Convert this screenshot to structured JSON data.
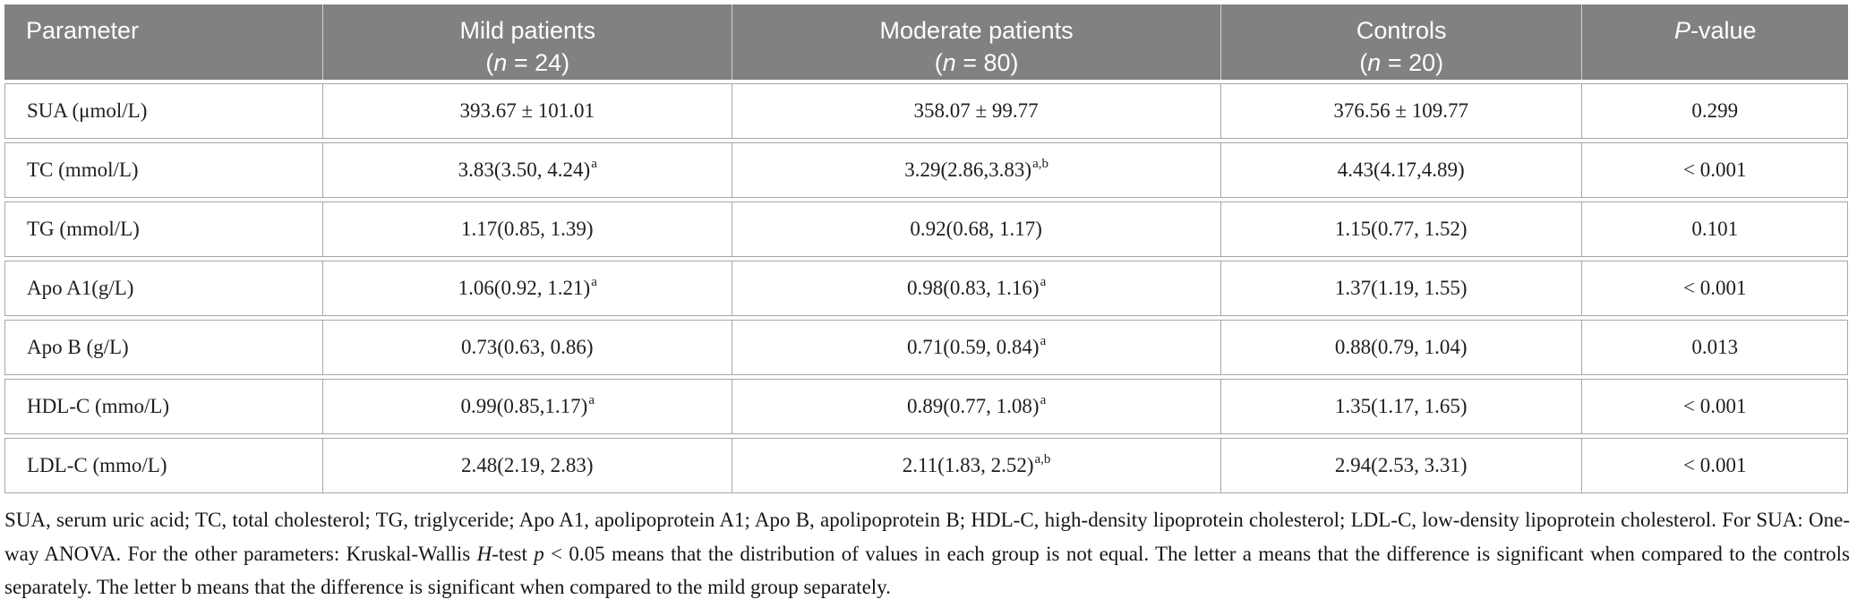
{
  "colors": {
    "header_bg": "#818181",
    "header_text": "#ffffff",
    "border": "#a6a6a6",
    "body_text": "#1f1f1f"
  },
  "table": {
    "header": {
      "parameter": "Parameter",
      "mild": {
        "title": "Mild patients",
        "paren_open": "(",
        "n_italic": "n",
        "paren_rest": " = 24)"
      },
      "moderate": {
        "title": "Moderate patients",
        "paren_open": "(",
        "n_italic": "n",
        "paren_rest": " = 80)"
      },
      "controls": {
        "title": "Controls",
        "paren_open": "(",
        "n_italic": "n",
        "paren_rest": " = 20)"
      },
      "pvalue": {
        "p_italic": "P",
        "rest": "-value"
      }
    },
    "rows": [
      {
        "param": "SUA (μmol/L)",
        "mild": {
          "text": "393.67 ± 101.01"
        },
        "moderate": {
          "text": "358.07 ± 99.77"
        },
        "controls": {
          "text": "376.56 ± 109.77"
        },
        "p": "0.299"
      },
      {
        "param": "TC (mmol/L)",
        "mild": {
          "text": "3.83(3.50, 4.24)",
          "sup": "a"
        },
        "moderate": {
          "text": "3.29(2.86,3.83)",
          "sup": "a,b"
        },
        "controls": {
          "text": "4.43(4.17,4.89)"
        },
        "p": "< 0.001"
      },
      {
        "param": "TG (mmol/L)",
        "mild": {
          "text": "1.17(0.85, 1.39)"
        },
        "moderate": {
          "text": "0.92(0.68, 1.17)"
        },
        "controls": {
          "text": "1.15(0.77, 1.52)"
        },
        "p": "0.101"
      },
      {
        "param": "Apo A1(g/L)",
        "mild": {
          "text": "1.06(0.92, 1.21)",
          "sup": "a"
        },
        "moderate": {
          "text": "0.98(0.83, 1.16)",
          "sup": "a"
        },
        "controls": {
          "text": "1.37(1.19, 1.55)"
        },
        "p": "< 0.001"
      },
      {
        "param": "Apo B (g/L)",
        "mild": {
          "text": "0.73(0.63, 0.86)"
        },
        "moderate": {
          "text": "0.71(0.59, 0.84)",
          "sup": "a"
        },
        "controls": {
          "text": "0.88(0.79, 1.04)"
        },
        "p": "0.013"
      },
      {
        "param": "HDL-C (mmo/L)",
        "mild": {
          "text": "0.99(0.85,1.17)",
          "sup": "a"
        },
        "moderate": {
          "text": "0.89(0.77, 1.08)",
          "sup": "a"
        },
        "controls": {
          "text": "1.35(1.17, 1.65)"
        },
        "p": "< 0.001"
      },
      {
        "param": "LDL-C (mmo/L)",
        "mild": {
          "text": "2.48(2.19, 2.83)"
        },
        "moderate": {
          "text": "2.11(1.83, 2.52)",
          "sup": "a,b"
        },
        "controls": {
          "text": "2.94(2.53, 3.31)"
        },
        "p": "< 0.001"
      }
    ]
  },
  "footnote": {
    "part1": "SUA, serum uric acid; TC, total cholesterol; TG, triglyceride; Apo A1, apolipoprotein A1; Apo B, apolipoprotein B; HDL-C, high-density lipoprotein cholesterol; LDL-C, low-density lipoprotein cholesterol. For SUA: One-way ANOVA. For the other parameters: Kruskal-Wallis ",
    "h_italic": "H",
    "part2": "-test ",
    "p_italic": "p",
    "part3": " < 0.05 means that the distribution of values in each group is not equal. The letter a means that the difference is significant when compared to the controls separately. The letter b means that the difference is significant when compared to the mild group separately."
  }
}
